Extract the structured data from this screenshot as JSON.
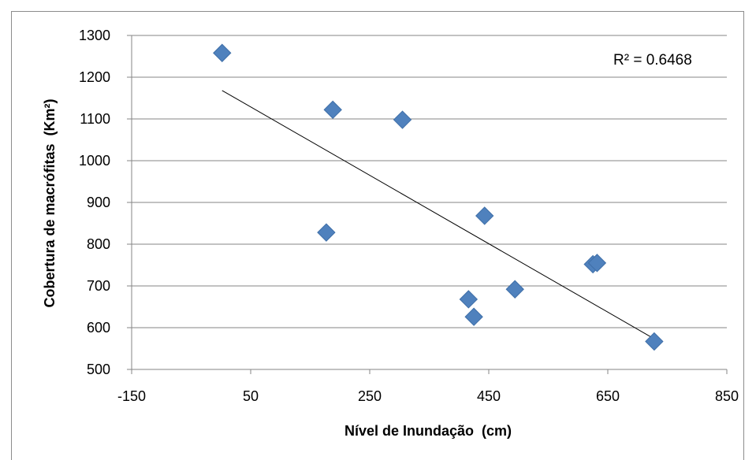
{
  "chart_data": {
    "type": "scatter",
    "xlabel": "Nível de Inundação  (cm)",
    "ylabel": "Cobertura de macrófitas  (Km²)",
    "xlim": [
      -150,
      850
    ],
    "ylim": [
      500,
      1300
    ],
    "xticks": [
      -150,
      50,
      250,
      450,
      650,
      850
    ],
    "yticks": [
      500,
      600,
      700,
      800,
      900,
      1000,
      1100,
      1200,
      1300
    ],
    "grid": "horizontal",
    "legend": "none",
    "series": [
      {
        "color": "#4F81BD",
        "marker": "diamond",
        "points": [
          {
            "x": 2,
            "y": 1258
          },
          {
            "x": 188,
            "y": 1122
          },
          {
            "x": 305,
            "y": 1098
          },
          {
            "x": 177,
            "y": 828
          },
          {
            "x": 443,
            "y": 868
          },
          {
            "x": 416,
            "y": 668
          },
          {
            "x": 425,
            "y": 626
          },
          {
            "x": 494,
            "y": 692
          },
          {
            "x": 625,
            "y": 752
          },
          {
            "x": 632,
            "y": 755
          },
          {
            "x": 728,
            "y": 567
          }
        ]
      }
    ],
    "trendline": {
      "type": "linear",
      "color": "#000000",
      "label": "R² = 0.6468"
    }
  }
}
